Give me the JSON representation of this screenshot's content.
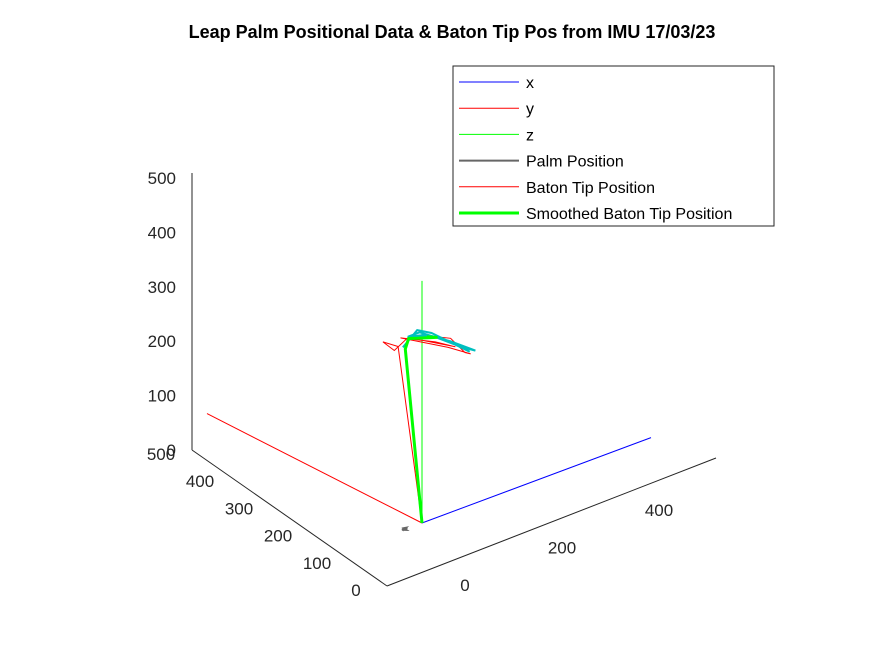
{
  "chart_data": {
    "type": "line3d",
    "title": "Leap Palm Positional Data & Baton Tip Pos from IMU 17/03/23",
    "xlabel": "",
    "ylabel": "",
    "zlabel": "",
    "x_ticks": [
      0,
      200,
      400
    ],
    "y_ticks": [
      0,
      100,
      200,
      300,
      400,
      500
    ],
    "z_ticks": [
      0,
      100,
      200,
      300,
      400,
      500
    ],
    "xlim": [
      0,
      480
    ],
    "ylim": [
      0,
      500
    ],
    "zlim": [
      0,
      500
    ],
    "grid": false,
    "legend_position": "top-right",
    "colors": {
      "x": "#0000ff",
      "y": "#ff0000",
      "z": "#00ff00",
      "palm": "#666666",
      "baton": "#ff0000",
      "smoothed": "#00ff00",
      "tip_cluster": "#00bfbf"
    },
    "legend": [
      {
        "label": "x",
        "color": "#0000ff",
        "width": 1
      },
      {
        "label": "y",
        "color": "#ff0000",
        "width": 1
      },
      {
        "label": "z",
        "color": "#00ff00",
        "width": 1
      },
      {
        "label": "Palm Position",
        "color": "#666666",
        "width": 2
      },
      {
        "label": "Baton Tip Position",
        "color": "#ff0000",
        "width": 1
      },
      {
        "label": "Smoothed Baton Tip Position",
        "color": "#00ff00",
        "width": 3
      }
    ],
    "axis_vectors": {
      "x": [
        [
          0,
          0,
          0
        ],
        [
          480,
          0,
          0
        ]
      ],
      "y": [
        [
          0,
          0,
          0
        ],
        [
          0,
          480,
          0
        ]
      ],
      "z": [
        [
          0,
          0,
          0
        ],
        [
          0,
          0,
          470
        ]
      ]
    },
    "palm_position": [
      [
        -35,
        0,
        0
      ],
      [
        -31,
        0,
        2
      ],
      [
        -36,
        0,
        2
      ],
      [
        -40,
        2,
        0
      ],
      [
        -33,
        0,
        -2
      ],
      [
        -38,
        0,
        3
      ],
      [
        -31,
        3,
        0
      ],
      [
        -40,
        0,
        -1
      ],
      [
        -34,
        -1,
        3
      ]
    ],
    "baton_tip_position": [
      [
        0,
        0,
        0
      ],
      [
        -50,
        0,
        360
      ],
      [
        -82,
        0,
        380
      ],
      [
        -58,
        0,
        355
      ],
      [
        -30,
        0,
        370
      ],
      [
        10,
        0,
        360
      ],
      [
        60,
        0,
        338
      ],
      [
        90,
        0,
        300
      ],
      [
        102,
        0,
        293
      ],
      [
        55,
        0,
        322
      ],
      [
        -45,
        0,
        375
      ],
      [
        28,
        0,
        342
      ],
      [
        70,
        0,
        318
      ],
      [
        0,
        0,
        355
      ]
    ],
    "smoothed_baton_tip_position": [
      [
        0,
        0,
        0
      ],
      [
        -35,
        0,
        350
      ],
      [
        -28,
        0,
        368
      ],
      [
        -10,
        0,
        362
      ],
      [
        30,
        0,
        350
      ],
      [
        10,
        0,
        358
      ]
    ],
    "tip_cluster": [
      [
        -40,
        0,
        355
      ],
      [
        -10,
        0,
        378
      ],
      [
        20,
        0,
        362
      ],
      [
        50,
        0,
        338
      ],
      [
        80,
        0,
        316
      ],
      [
        100,
        0,
        298
      ],
      [
        70,
        0,
        322
      ],
      [
        30,
        0,
        350
      ],
      [
        -5,
        0,
        372
      ],
      [
        -30,
        0,
        372
      ],
      [
        10,
        0,
        362
      ],
      [
        45,
        0,
        342
      ],
      [
        85,
        0,
        312
      ],
      [
        112,
        0,
        296
      ],
      [
        60,
        0,
        332
      ],
      [
        20,
        0,
        356
      ],
      [
        -20,
        0,
        370
      ]
    ]
  }
}
